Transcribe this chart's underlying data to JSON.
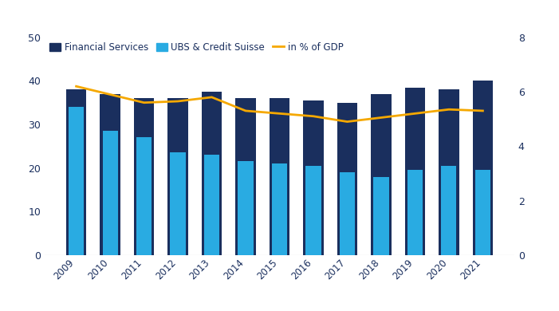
{
  "years": [
    2009,
    2010,
    2011,
    2012,
    2013,
    2014,
    2015,
    2016,
    2017,
    2018,
    2019,
    2020,
    2021
  ],
  "financial_services": [
    38.0,
    37.0,
    36.0,
    36.0,
    37.5,
    36.0,
    36.0,
    35.5,
    35.0,
    37.0,
    38.5,
    38.0,
    40.0
  ],
  "ubs_credit_suisse": [
    34.0,
    28.5,
    27.0,
    23.5,
    23.0,
    21.5,
    21.0,
    20.5,
    19.0,
    18.0,
    19.5,
    20.5,
    19.5
  ],
  "pct_gdp": [
    6.2,
    5.9,
    5.6,
    5.65,
    5.8,
    5.3,
    5.2,
    5.1,
    4.9,
    5.05,
    5.2,
    5.35,
    5.3
  ],
  "color_financial_services": "#1a2f5e",
  "color_ubs_credit_suisse": "#29abe2",
  "color_pct_gdp": "#f5a800",
  "bar_width": 0.6,
  "ylim_left": [
    0,
    50
  ],
  "ylim_right": [
    0,
    8
  ],
  "yticks_left": [
    0,
    10,
    20,
    30,
    40,
    50
  ],
  "yticks_right": [
    0,
    2,
    4,
    6,
    8
  ],
  "legend_labels": [
    "Financial Services",
    "UBS & Credit Suisse",
    "in % of GDP"
  ],
  "background_color": "#ffffff",
  "axis_color": "#1a2f5e",
  "tick_color": "#1a2f5e",
  "spine_color": "#bbbbbb",
  "figsize": [
    7.01,
    3.9
  ],
  "dpi": 100
}
